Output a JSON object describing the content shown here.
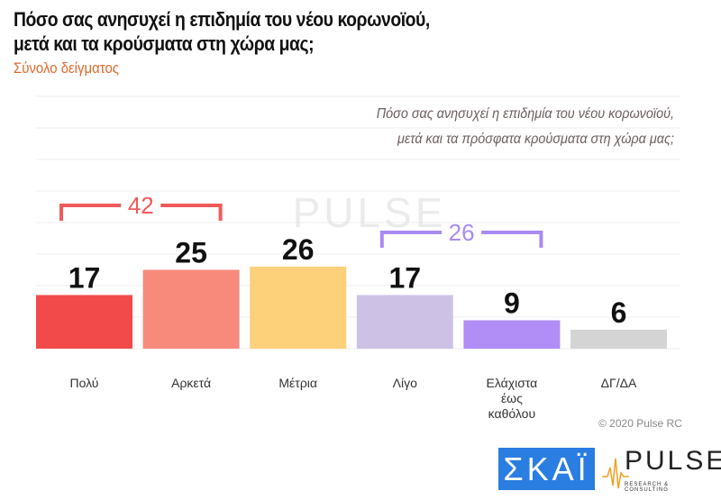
{
  "chart_data": {
    "type": "bar",
    "title": "Πόσο σας ανησυχεί η επιδημία του νέου κορωνοϊού, μετά και τα κρούσματα στη χώρα μας;",
    "title_lines": [
      "Πόσο σας ανησυχεί η επιδημία του νέου κορωνοϊού,",
      "μετά και τα κρούσματα στη χώρα μας;"
    ],
    "subtitle": "Σύνολο δείγματος",
    "question_lines": [
      "Πόσο σας ανησυχεί η επιδημία του νέου κορωνοϊού,",
      "μετά και τα πρόσφατα κρούσματα στη χώρα μας;"
    ],
    "categories": [
      [
        "Πολύ"
      ],
      [
        "Αρκετά"
      ],
      [
        "Μέτρια"
      ],
      [
        "Λίγο"
      ],
      [
        "Ελάχιστα",
        "έως",
        "καθόλου"
      ],
      [
        "ΔΓ/ΔΑ"
      ]
    ],
    "values": [
      17,
      25,
      26,
      17,
      9,
      6
    ],
    "colors": [
      "#f24a4a",
      "#f88a7c",
      "#fdd07a",
      "#cdc2e6",
      "#b08ef5",
      "#d4d4d4"
    ],
    "ylim": [
      0,
      80
    ],
    "grid": true,
    "groups": [
      {
        "label": "42",
        "from": 0,
        "to": 1,
        "color": "#f05a5a"
      },
      {
        "label": "26",
        "from": 3,
        "to": 4,
        "color": "#a98bf2"
      }
    ]
  },
  "footer": {
    "copyright": "© 2020 Pulse RC",
    "skai_logo": "ΣΚΑΪ",
    "pulse_logo": "PULSE",
    "pulse_tagline": "RESEARCH & CONSULTING"
  }
}
